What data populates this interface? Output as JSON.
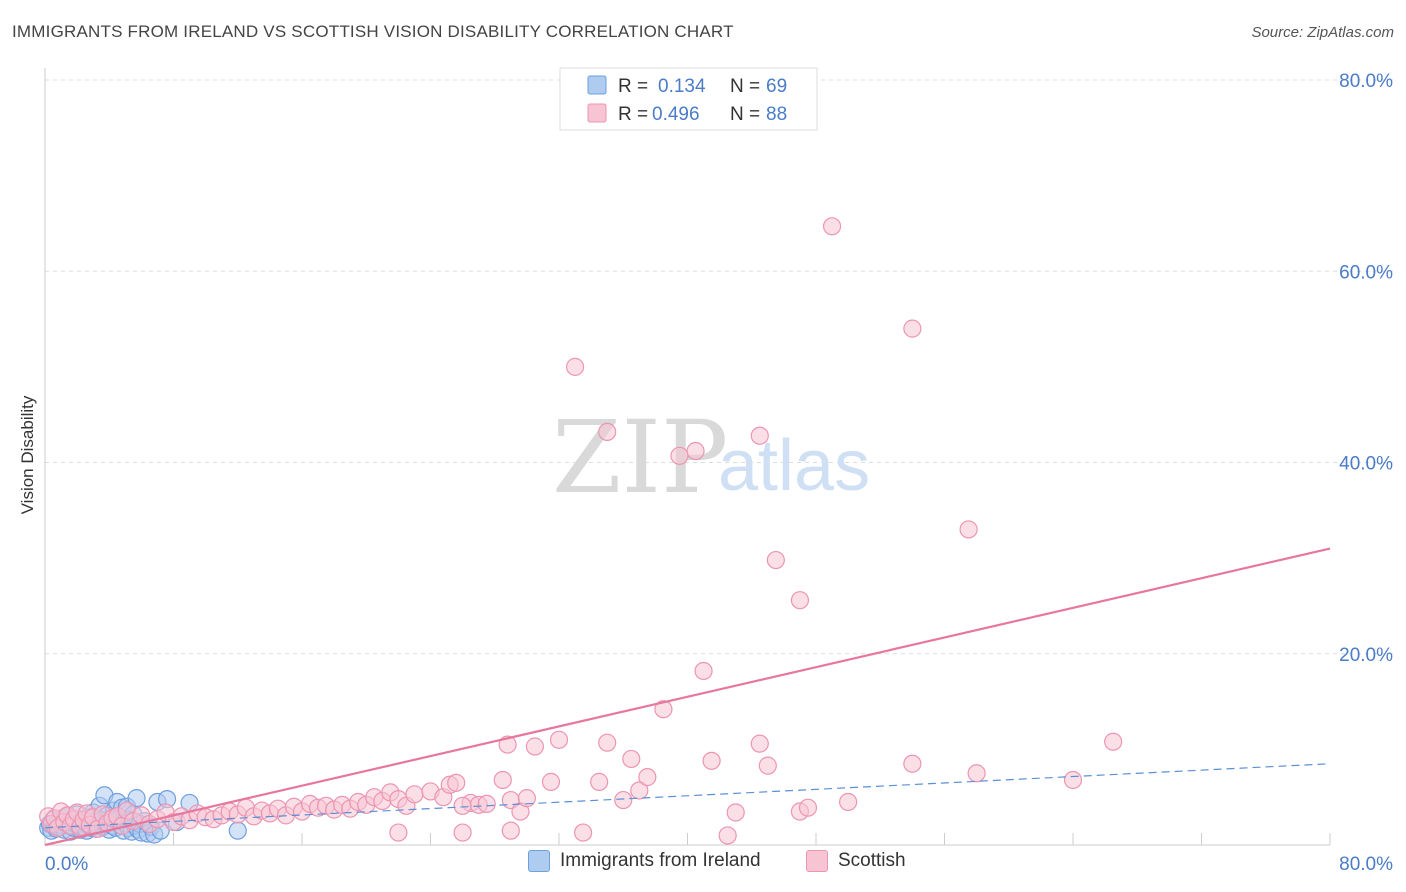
{
  "title": "IMMIGRANTS FROM IRELAND VS SCOTTISH VISION DISABILITY CORRELATION CHART",
  "source": "Source: ZipAtlas.com",
  "watermark": {
    "part1": "ZIP",
    "part2": "atlas"
  },
  "colors": {
    "ireland_fill": "#aecbf0",
    "ireland_stroke": "#6f9fde",
    "ireland_line": "#5b8fd6",
    "scottish_fill": "#f7c4d4",
    "scottish_stroke": "#ec95b3",
    "scottish_line": "#e7779c",
    "tick_text": "#4a7cc7",
    "grid": "#dddddd"
  },
  "legend": {
    "rows": [
      {
        "r_label": "R =",
        "r_value": "0.134",
        "n_label": "N =",
        "n_value": "69",
        "series": "ireland"
      },
      {
        "r_label": "R =",
        "r_value": "0.496",
        "n_label": "N =",
        "n_value": "88",
        "series": "scottish"
      }
    ]
  },
  "bottom_legend": [
    {
      "label": "Immigrants from Ireland",
      "series": "ireland"
    },
    {
      "label": "Scottish",
      "series": "scottish"
    }
  ],
  "chart_data": {
    "type": "scatter",
    "title": "IMMIGRANTS FROM IRELAND VS SCOTTISH VISION DISABILITY CORRELATION CHART",
    "xlabel": "",
    "ylabel": "Vision Disability",
    "xlim": [
      0,
      80
    ],
    "ylim": [
      0,
      80
    ],
    "x_tick_labels": [
      "0.0%",
      "80.0%"
    ],
    "y_ticks": [
      20,
      40,
      60,
      80
    ],
    "y_tick_labels": [
      "20.0%",
      "40.0%",
      "60.0%",
      "80.0%"
    ],
    "grid": true,
    "legend_position": "top-center",
    "series": [
      {
        "name": "Immigrants from Ireland",
        "key": "ireland",
        "R": 0.134,
        "N": 69,
        "trend": {
          "x": [
            0,
            80
          ],
          "y": [
            1.8,
            8.5
          ],
          "style": "dashed"
        },
        "points": [
          [
            0.2,
            1.8
          ],
          [
            0.3,
            2.2
          ],
          [
            0.4,
            1.5
          ],
          [
            0.5,
            2.6
          ],
          [
            0.6,
            2.0
          ],
          [
            0.7,
            1.7
          ],
          [
            0.8,
            2.4
          ],
          [
            0.9,
            1.9
          ],
          [
            1.0,
            2.1
          ],
          [
            1.1,
            2.8
          ],
          [
            1.2,
            1.6
          ],
          [
            1.3,
            2.3
          ],
          [
            1.4,
            3.0
          ],
          [
            1.5,
            2.0
          ],
          [
            1.6,
            1.4
          ],
          [
            1.7,
            2.5
          ],
          [
            1.8,
            1.8
          ],
          [
            1.9,
            2.2
          ],
          [
            2.0,
            3.2
          ],
          [
            2.1,
            2.0
          ],
          [
            2.2,
            1.6
          ],
          [
            2.3,
            2.7
          ],
          [
            2.4,
            1.9
          ],
          [
            2.5,
            2.3
          ],
          [
            2.6,
            1.5
          ],
          [
            2.7,
            2.1
          ],
          [
            2.8,
            2.9
          ],
          [
            2.9,
            1.8
          ],
          [
            3.0,
            3.4
          ],
          [
            3.1,
            2.4
          ],
          [
            3.2,
            1.7
          ],
          [
            3.3,
            2.0
          ],
          [
            3.4,
            4.1
          ],
          [
            3.5,
            2.6
          ],
          [
            3.6,
            1.9
          ],
          [
            3.7,
            5.2
          ],
          [
            3.8,
            2.2
          ],
          [
            3.9,
            3.1
          ],
          [
            4.0,
            1.6
          ],
          [
            4.1,
            2.4
          ],
          [
            4.2,
            2.0
          ],
          [
            4.3,
            3.6
          ],
          [
            4.4,
            1.8
          ],
          [
            4.5,
            4.5
          ],
          [
            4.6,
            2.8
          ],
          [
            4.7,
            2.1
          ],
          [
            4.8,
            3.9
          ],
          [
            4.9,
            1.5
          ],
          [
            5.0,
            2.3
          ],
          [
            5.1,
            4.0
          ],
          [
            5.2,
            1.8
          ],
          [
            5.3,
            2.6
          ],
          [
            5.4,
            1.4
          ],
          [
            5.5,
            3.2
          ],
          [
            5.6,
            2.0
          ],
          [
            5.7,
            4.9
          ],
          [
            5.8,
            1.6
          ],
          [
            5.9,
            2.2
          ],
          [
            6.0,
            1.3
          ],
          [
            6.2,
            2.5
          ],
          [
            6.4,
            1.2
          ],
          [
            6.6,
            1.9
          ],
          [
            6.8,
            1.1
          ],
          [
            7.0,
            4.5
          ],
          [
            7.2,
            1.5
          ],
          [
            7.6,
            4.8
          ],
          [
            8.2,
            2.4
          ],
          [
            9.0,
            4.4
          ],
          [
            12.0,
            1.5
          ]
        ]
      },
      {
        "name": "Scottish",
        "key": "scottish",
        "R": 0.496,
        "N": 88,
        "trend": {
          "x": [
            0,
            80
          ],
          "y": [
            0.0,
            31.0
          ],
          "style": "solid"
        },
        "points": [
          [
            0.2,
            3.0
          ],
          [
            0.4,
            2.2
          ],
          [
            0.6,
            2.8
          ],
          [
            0.8,
            1.8
          ],
          [
            1.0,
            3.5
          ],
          [
            1.2,
            2.4
          ],
          [
            1.4,
            3.1
          ],
          [
            1.6,
            2.0
          ],
          [
            1.8,
            2.7
          ],
          [
            2.0,
            3.4
          ],
          [
            2.2,
            1.9
          ],
          [
            2.4,
            2.6
          ],
          [
            2.6,
            3.3
          ],
          [
            2.8,
            2.1
          ],
          [
            3.0,
            2.9
          ],
          [
            3.3,
            1.7
          ],
          [
            3.6,
            3.2
          ],
          [
            3.9,
            2.3
          ],
          [
            4.2,
            2.8
          ],
          [
            4.5,
            3.0
          ],
          [
            4.8,
            2.0
          ],
          [
            5.1,
            3.6
          ],
          [
            5.5,
            2.5
          ],
          [
            6.0,
            3.1
          ],
          [
            6.5,
            2.2
          ],
          [
            7.0,
            2.7
          ],
          [
            7.5,
            3.4
          ],
          [
            8.0,
            2.4
          ],
          [
            8.5,
            3.0
          ],
          [
            9.0,
            2.6
          ],
          [
            9.5,
            3.3
          ],
          [
            10.0,
            2.9
          ],
          [
            10.5,
            2.7
          ],
          [
            11.0,
            3.1
          ],
          [
            11.5,
            3.5
          ],
          [
            12.0,
            3.2
          ],
          [
            12.5,
            3.9
          ],
          [
            13.0,
            3.0
          ],
          [
            13.5,
            3.6
          ],
          [
            14.0,
            3.3
          ],
          [
            14.5,
            3.8
          ],
          [
            15.0,
            3.1
          ],
          [
            15.5,
            4.0
          ],
          [
            16.0,
            3.5
          ],
          [
            16.5,
            4.3
          ],
          [
            17.0,
            3.9
          ],
          [
            17.5,
            4.1
          ],
          [
            18.0,
            3.7
          ],
          [
            18.5,
            4.2
          ],
          [
            19.0,
            3.8
          ],
          [
            19.5,
            4.5
          ],
          [
            20.0,
            4.2
          ],
          [
            20.5,
            5.0
          ],
          [
            21.0,
            4.6
          ],
          [
            21.5,
            5.5
          ],
          [
            22.0,
            4.8
          ],
          [
            22.5,
            4.1
          ],
          [
            23.0,
            5.3
          ],
          [
            24.0,
            5.6
          ],
          [
            24.8,
            5.0
          ],
          [
            25.2,
            6.3
          ],
          [
            25.6,
            6.5
          ],
          [
            26.5,
            4.4
          ],
          [
            27.0,
            4.2
          ],
          [
            27.5,
            4.3
          ],
          [
            28.5,
            6.8
          ],
          [
            28.8,
            10.5
          ],
          [
            29.0,
            4.7
          ],
          [
            29.6,
            3.5
          ],
          [
            30.5,
            10.3
          ],
          [
            31.5,
            6.6
          ],
          [
            32.0,
            11.0
          ],
          [
            22.0,
            1.3
          ],
          [
            26.0,
            1.3
          ],
          [
            29.0,
            1.5
          ],
          [
            34.5,
            6.6
          ],
          [
            35.0,
            10.7
          ],
          [
            36.0,
            4.7
          ],
          [
            36.5,
            9.0
          ],
          [
            37.0,
            5.7
          ],
          [
            37.5,
            7.1
          ],
          [
            38.5,
            14.2
          ],
          [
            41.0,
            18.2
          ],
          [
            39.5,
            40.7
          ],
          [
            40.5,
            41.2
          ],
          [
            44.5,
            42.8
          ],
          [
            45.5,
            29.8
          ],
          [
            47.0,
            25.6
          ]
        ],
        "extra_points": [
          [
            33.0,
            50.0
          ],
          [
            35.0,
            43.2
          ],
          [
            49.0,
            64.7
          ],
          [
            54.0,
            54.0
          ],
          [
            57.5,
            33.0
          ],
          [
            54.0,
            8.5
          ],
          [
            50.0,
            4.5
          ],
          [
            58.0,
            7.5
          ],
          [
            64.0,
            6.8
          ],
          [
            66.5,
            10.8
          ],
          [
            42.5,
            1.0
          ],
          [
            41.5,
            8.8
          ],
          [
            43.0,
            3.4
          ],
          [
            44.5,
            10.6
          ],
          [
            45.0,
            8.3
          ],
          [
            47.0,
            3.5
          ],
          [
            47.5,
            3.9
          ],
          [
            33.5,
            1.3
          ],
          [
            30.0,
            4.9
          ],
          [
            26.0,
            4.1
          ]
        ]
      }
    ]
  }
}
